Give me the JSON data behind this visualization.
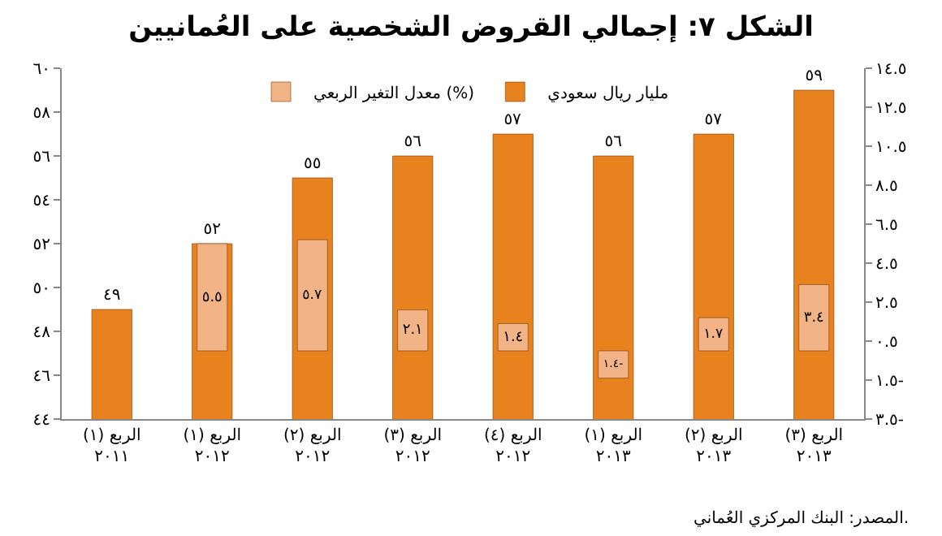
{
  "chart_data": {
    "type": "bar",
    "title": "الشكل ٧: إجمالي القروض الشخصية على العُمانيين",
    "categories": [
      "الربع (١)\n٢٠١١",
      "الربع (١)\n٢٠١٢",
      "الربع (٢)\n٢٠١٢",
      "الربع (٣)\n٢٠١٢",
      "الربع (٤)\n٢٠١٢",
      "الربع (١)\n٢٠١٣",
      "الربع (٢)\n٢٠١٣",
      "الربع (٣)\n٢٠١٣"
    ],
    "series": [
      {
        "name": "مليار ريال سعودي",
        "color": "#e8821e",
        "values": [
          49,
          52,
          55,
          56,
          57,
          56,
          57,
          59
        ],
        "value_labels": [
          "٤٩",
          "٥٢",
          "٥٥",
          "٥٦",
          "٥٧",
          "٥٦",
          "٥٧",
          "٥٩"
        ]
      },
      {
        "name": "معدل التغير الربعي (%)",
        "color": "#f2b486",
        "axis": "y2",
        "values": [
          null,
          5.5,
          5.7,
          2.1,
          1.4,
          -1.4,
          1.7,
          3.4
        ],
        "value_labels": [
          null,
          "٥.٥",
          "٥.٧",
          "٢.١",
          "١.٤",
          "-١.٤",
          "١.٧",
          "٣.٤"
        ]
      }
    ],
    "ylim": [
      44,
      60
    ],
    "yticks": [
      {
        "value": 44,
        "label": "٤٤"
      },
      {
        "value": 46,
        "label": "٤٦"
      },
      {
        "value": 48,
        "label": "٤٨"
      },
      {
        "value": 50,
        "label": "٥٠"
      },
      {
        "value": 52,
        "label": "٥٢"
      },
      {
        "value": 54,
        "label": "٥٤"
      },
      {
        "value": 56,
        "label": "٥٦"
      },
      {
        "value": 58,
        "label": "٥٨"
      },
      {
        "value": 60,
        "label": "٦٠"
      }
    ],
    "y2lim": [
      -3.5,
      14.5
    ],
    "y2ticks": [
      {
        "value": -3.5,
        "label": "-٣.٥"
      },
      {
        "value": -1.5,
        "label": "-١.٥"
      },
      {
        "value": 0.5,
        "label": "٠.٥"
      },
      {
        "value": 2.5,
        "label": "٢.٥"
      },
      {
        "value": 4.5,
        "label": "٤.٥"
      },
      {
        "value": 6.5,
        "label": "٦.٥"
      },
      {
        "value": 8.5,
        "label": "٨.٥"
      },
      {
        "value": 10.5,
        "label": "١٠.٥"
      },
      {
        "value": 12.5,
        "label": "١٢.٥"
      },
      {
        "value": 14.5,
        "label": "١٤.٥"
      }
    ],
    "legend": "top",
    "grid": false,
    "annotations": [
      "المصدر: البنك المركزي العُماني."
    ]
  }
}
